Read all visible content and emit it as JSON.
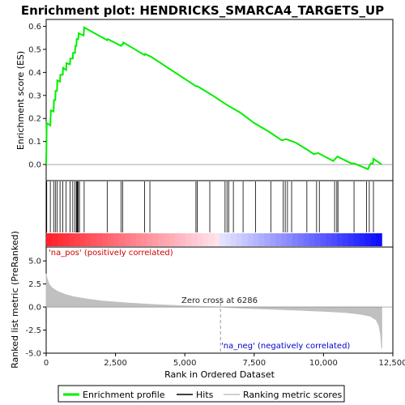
{
  "chart_data": {
    "type": "line",
    "title": "Enrichment plot: HENDRICKS_SMARCA4_TARGETS_UP",
    "x_range": [
      0,
      12500
    ],
    "x_ticks": [
      0,
      2500,
      5000,
      7500,
      10000,
      12500
    ],
    "x_tick_labels": [
      "0",
      "2,500",
      "5,000",
      "7,500",
      "10,000",
      "12,500"
    ],
    "xlabel": "Rank in Ordered Dataset",
    "n_genes": 12100,
    "zero_cross": 6286,
    "zero_cross_label": "Zero cross at 6286",
    "pos_label": "'na_pos' (positively correlated)",
    "neg_label": "'na_neg' (negatively correlated)",
    "es_panel": {
      "ylabel": "Enrichment score (ES)",
      "ylim": [
        -0.07,
        0.63
      ],
      "y_ticks": [
        0.0,
        0.1,
        0.2,
        0.3,
        0.4,
        0.5,
        0.6
      ],
      "y_tick_labels": [
        "0.0",
        "0.1",
        "0.2",
        "0.3",
        "0.4",
        "0.5",
        "0.6"
      ],
      "series": [
        {
          "name": "Enrichment profile",
          "color": "#00ee00",
          "points": [
            [
              0,
              0.0
            ],
            [
              20,
              0.18
            ],
            [
              150,
              0.17
            ],
            [
              170,
              0.235
            ],
            [
              270,
              0.23
            ],
            [
              280,
              0.28
            ],
            [
              330,
              0.28
            ],
            [
              340,
              0.32
            ],
            [
              390,
              0.32
            ],
            [
              400,
              0.365
            ],
            [
              500,
              0.36
            ],
            [
              510,
              0.39
            ],
            [
              600,
              0.39
            ],
            [
              610,
              0.42
            ],
            [
              720,
              0.41
            ],
            [
              730,
              0.44
            ],
            [
              860,
              0.435
            ],
            [
              870,
              0.46
            ],
            [
              960,
              0.46
            ],
            [
              970,
              0.485
            ],
            [
              1040,
              0.485
            ],
            [
              1050,
              0.515
            ],
            [
              1090,
              0.515
            ],
            [
              1100,
              0.545
            ],
            [
              1160,
              0.545
            ],
            [
              1170,
              0.57
            ],
            [
              1350,
              0.56
            ],
            [
              1370,
              0.595
            ],
            [
              2200,
              0.54
            ],
            [
              2220,
              0.545
            ],
            [
              2700,
              0.515
            ],
            [
              2720,
              0.52
            ],
            [
              2760,
              0.52
            ],
            [
              2780,
              0.53
            ],
            [
              3550,
              0.475
            ],
            [
              3570,
              0.48
            ],
            [
              3740,
              0.47
            ],
            [
              3760,
              0.47
            ],
            [
              5400,
              0.34
            ],
            [
              5450,
              0.34
            ],
            [
              6000,
              0.3
            ],
            [
              6500,
              0.26
            ],
            [
              7000,
              0.225
            ],
            [
              7500,
              0.18
            ],
            [
              8000,
              0.145
            ],
            [
              8500,
              0.105
            ],
            [
              8650,
              0.11
            ],
            [
              9000,
              0.095
            ],
            [
              9400,
              0.065
            ],
            [
              9650,
              0.045
            ],
            [
              9800,
              0.05
            ],
            [
              10350,
              0.015
            ],
            [
              10500,
              0.035
            ],
            [
              11000,
              0.005
            ],
            [
              11100,
              0.005
            ],
            [
              11600,
              -0.02
            ],
            [
              11700,
              0.005
            ],
            [
              11780,
              0.005
            ],
            [
              11800,
              0.025
            ],
            [
              12100,
              0.0
            ]
          ]
        }
      ]
    },
    "hits_panel": {
      "legend_name": "Hits",
      "color": "#000000",
      "positions": [
        20,
        150,
        270,
        330,
        390,
        500,
        600,
        720,
        860,
        960,
        1040,
        1090,
        1110,
        1130,
        1160,
        1200,
        1370,
        2200,
        2700,
        2760,
        3550,
        3740,
        5400,
        5450,
        5900,
        6450,
        6520,
        6580,
        6750,
        7100,
        7550,
        8100,
        8550,
        8620,
        8700,
        8850,
        9400,
        9750,
        9850,
        10400,
        10480,
        10520,
        11100,
        11550,
        11650,
        11800
      ]
    },
    "heat_bar": {
      "pos_color": "#ff0000",
      "neg_color": "#0000ff"
    },
    "metric_panel": {
      "name": "Ranking metric scores",
      "ylabel": "Ranked list metric (PreRanked)",
      "ylim": [
        -5,
        6.5
      ],
      "y_ticks": [
        -5.0,
        -2.5,
        0.0,
        2.5,
        5.0
      ],
      "y_tick_labels": [
        "-5.0",
        "-2.5",
        "0.0",
        "2.5",
        "5.0"
      ],
      "color": "#c0c0c0",
      "points": [
        [
          0,
          3.6
        ],
        [
          30,
          3.1
        ],
        [
          100,
          2.5
        ],
        [
          200,
          2.1
        ],
        [
          400,
          1.7
        ],
        [
          700,
          1.35
        ],
        [
          1000,
          1.1
        ],
        [
          1500,
          0.85
        ],
        [
          2000,
          0.65
        ],
        [
          3000,
          0.42
        ],
        [
          4000,
          0.25
        ],
        [
          5000,
          0.12
        ],
        [
          6286,
          0.0
        ],
        [
          7000,
          -0.1
        ],
        [
          8000,
          -0.22
        ],
        [
          9000,
          -0.33
        ],
        [
          10000,
          -0.45
        ],
        [
          10800,
          -0.58
        ],
        [
          11300,
          -0.75
        ],
        [
          11700,
          -1.0
        ],
        [
          11900,
          -1.4
        ],
        [
          12000,
          -2.0
        ],
        [
          12060,
          -3.0
        ],
        [
          12100,
          -4.5
        ]
      ]
    },
    "legend": {
      "items": [
        {
          "name": "Enrichment profile",
          "color": "#00ee00"
        },
        {
          "name": "Hits",
          "color": "#000000"
        },
        {
          "name": "Ranking metric scores",
          "color": "#c0c0c0"
        }
      ]
    }
  }
}
